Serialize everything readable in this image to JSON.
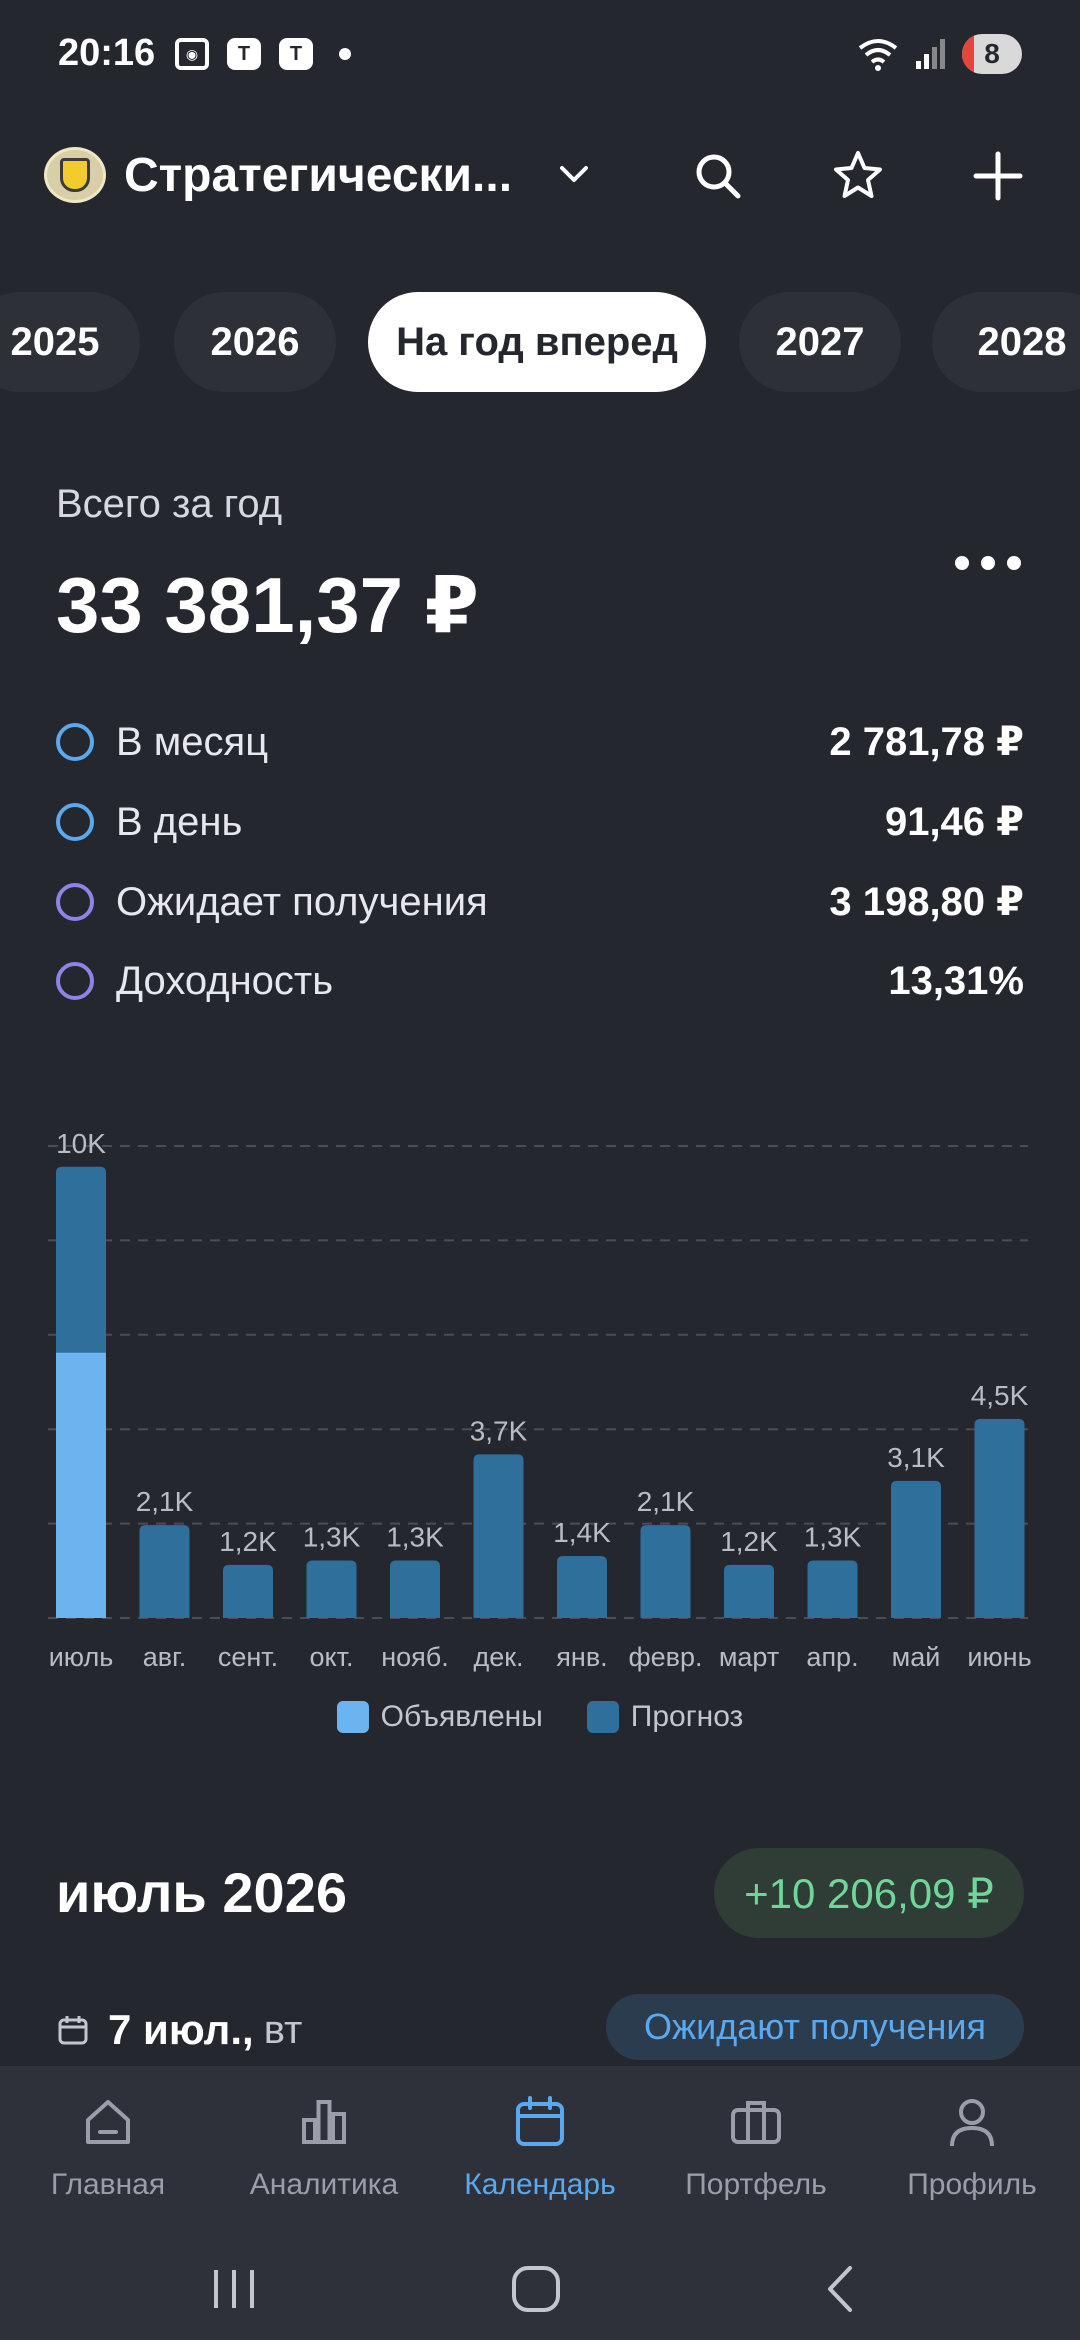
{
  "status_bar": {
    "time": "20:16",
    "battery": "8",
    "t_icon": "Т"
  },
  "header": {
    "title": "Стратегически...",
    "logo": "tinkoff-logo"
  },
  "tabs": [
    {
      "label": "2025",
      "active": false
    },
    {
      "label": "2026",
      "active": false
    },
    {
      "label": "На год вперед",
      "active": true
    },
    {
      "label": "2027",
      "active": false
    },
    {
      "label": "2028",
      "active": false
    }
  ],
  "summary": {
    "label": "Всего за год",
    "total": "33 381,37 ₽",
    "stats": [
      {
        "label": "В месяц",
        "value": "2 781,78 ₽",
        "color": "#5aa9ee"
      },
      {
        "label": "В день",
        "value": "91,46 ₽",
        "color": "#5aa9ee"
      },
      {
        "label": "Ожидает получения",
        "value": "3 198,80 ₽",
        "color": "#8d84e8"
      },
      {
        "label": "Доходность",
        "value": "13,31%",
        "color": "#8d84e8"
      }
    ]
  },
  "chart_data": {
    "type": "bar",
    "categories": [
      "июль",
      "авг.",
      "сент.",
      "окт.",
      "нояб.",
      "дек.",
      "янв.",
      "февр.",
      "март",
      "апр.",
      "май",
      "июнь"
    ],
    "series": [
      {
        "name": "Объявлены",
        "color": "#6cb4f0",
        "values": [
          6000,
          0,
          0,
          0,
          0,
          0,
          0,
          0,
          0,
          0,
          0,
          0
        ]
      },
      {
        "name": "Прогноз",
        "color": "#2f6f9b",
        "values": [
          4200,
          2100,
          1200,
          1300,
          1300,
          3700,
          1400,
          2100,
          1200,
          1300,
          3100,
          4500
        ]
      }
    ],
    "bar_labels": [
      "10K",
      "2,1K",
      "1,2K",
      "1,3K",
      "1,3K",
      "3,7K",
      "1,4K",
      "2,1K",
      "1,2K",
      "1,3K",
      "3,1K",
      "4,5K"
    ],
    "ylim": [
      0,
      10000
    ],
    "grid": true,
    "legend_position": "bottom"
  },
  "month_section": {
    "title": "июль 2026",
    "total_pill": "+10 206,09 ₽",
    "event_date": "7 июл.,",
    "event_day": "вт",
    "event_status": "Ожидают получения"
  },
  "bottom_nav": [
    {
      "label": "Главная",
      "icon": "home-icon",
      "active": false
    },
    {
      "label": "Аналитика",
      "icon": "analytics-icon",
      "active": false
    },
    {
      "label": "Календарь",
      "icon": "calendar-icon",
      "active": true
    },
    {
      "label": "Портфель",
      "icon": "briefcase-icon",
      "active": false
    },
    {
      "label": "Профиль",
      "icon": "profile-icon",
      "active": false
    }
  ]
}
